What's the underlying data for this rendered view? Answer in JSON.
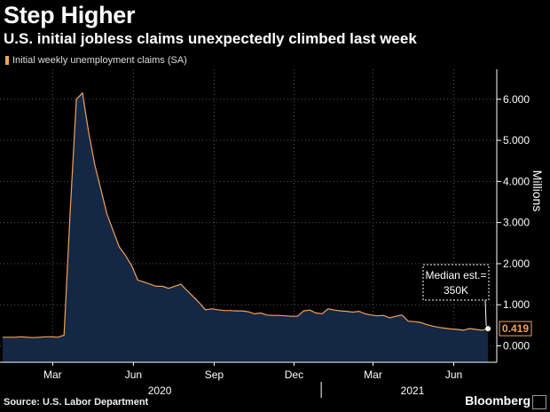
{
  "title": "Step Higher",
  "subtitle": "U.S. initial jobless claims unexpectedly climbed last week",
  "source": "Source: U.S. Labor Department",
  "brand": "Bloomberg",
  "colors": {
    "line": "#f0a35c",
    "fill": "#142743",
    "grid": "#555555",
    "background": "#000000"
  },
  "chart_data": {
    "type": "area",
    "title": "Step Higher",
    "subtitle": "U.S. initial jobless claims unexpectedly climbed last week",
    "series": [
      {
        "name": "Initial weekly unemployment claims (SA)",
        "x": [
          "2020-01-04",
          "2020-01-11",
          "2020-01-18",
          "2020-01-25",
          "2020-02-01",
          "2020-02-08",
          "2020-02-15",
          "2020-02-22",
          "2020-02-29",
          "2020-03-07",
          "2020-03-14",
          "2020-03-21",
          "2020-03-28",
          "2020-04-04",
          "2020-04-11",
          "2020-04-18",
          "2020-04-25",
          "2020-05-02",
          "2020-05-09",
          "2020-05-16",
          "2020-05-23",
          "2020-05-30",
          "2020-06-06",
          "2020-06-13",
          "2020-06-20",
          "2020-06-27",
          "2020-07-04",
          "2020-07-11",
          "2020-07-18",
          "2020-07-25",
          "2020-08-01",
          "2020-08-08",
          "2020-08-15",
          "2020-08-22",
          "2020-08-29",
          "2020-09-05",
          "2020-09-12",
          "2020-09-19",
          "2020-09-26",
          "2020-10-03",
          "2020-10-10",
          "2020-10-17",
          "2020-10-24",
          "2020-10-31",
          "2020-11-07",
          "2020-11-14",
          "2020-11-21",
          "2020-11-28",
          "2020-12-05",
          "2020-12-12",
          "2020-12-19",
          "2020-12-26",
          "2021-01-02",
          "2021-01-09",
          "2021-01-16",
          "2021-01-23",
          "2021-01-30",
          "2021-02-06",
          "2021-02-13",
          "2021-02-20",
          "2021-02-27",
          "2021-03-06",
          "2021-03-13",
          "2021-03-20",
          "2021-03-27",
          "2021-04-03",
          "2021-04-10",
          "2021-04-17",
          "2021-04-24",
          "2021-05-01",
          "2021-05-08",
          "2021-05-15",
          "2021-05-22",
          "2021-05-29",
          "2021-06-05",
          "2021-06-12",
          "2021-06-19",
          "2021-06-26",
          "2021-07-03",
          "2021-07-10"
        ],
        "values": [
          0.21,
          0.21,
          0.21,
          0.22,
          0.21,
          0.2,
          0.21,
          0.22,
          0.22,
          0.21,
          0.26,
          3.3,
          6.0,
          6.15,
          5.2,
          4.4,
          3.8,
          3.2,
          2.8,
          2.4,
          2.2,
          1.95,
          1.6,
          1.55,
          1.5,
          1.45,
          1.45,
          1.4,
          1.45,
          1.5,
          1.35,
          1.2,
          1.05,
          0.88,
          0.9,
          0.88,
          0.86,
          0.86,
          0.85,
          0.85,
          0.83,
          0.78,
          0.8,
          0.75,
          0.74,
          0.74,
          0.73,
          0.72,
          0.72,
          0.85,
          0.87,
          0.8,
          0.78,
          0.9,
          0.87,
          0.85,
          0.84,
          0.82,
          0.84,
          0.78,
          0.75,
          0.73,
          0.74,
          0.68,
          0.72,
          0.75,
          0.6,
          0.59,
          0.57,
          0.52,
          0.48,
          0.45,
          0.43,
          0.41,
          0.4,
          0.38,
          0.42,
          0.4,
          0.38,
          0.419
        ]
      }
    ],
    "x_ticks": [
      "Mar",
      "Jun",
      "Sep",
      "Dec",
      "Mar",
      "Jun"
    ],
    "x_tick_dates": [
      "2020-03-01",
      "2020-06-01",
      "2020-09-01",
      "2020-12-01",
      "2021-03-01",
      "2021-06-01"
    ],
    "years": [
      "2020",
      "2021"
    ],
    "y_ticks": [
      "6.000",
      "5.000",
      "4.000",
      "3.000",
      "2.000",
      "1.000",
      "0.000"
    ],
    "y_tick_values": [
      6,
      5,
      4,
      3,
      2,
      1,
      0
    ],
    "ylabel": "Millions",
    "ylim": [
      -0.4,
      6.6
    ],
    "y_axis_side": "right",
    "grid": true,
    "legend": "top-left",
    "annotation": {
      "line1": "Median est.=",
      "line2": "350K"
    },
    "last_value_label": "0.419",
    "last_value": 0.419
  }
}
